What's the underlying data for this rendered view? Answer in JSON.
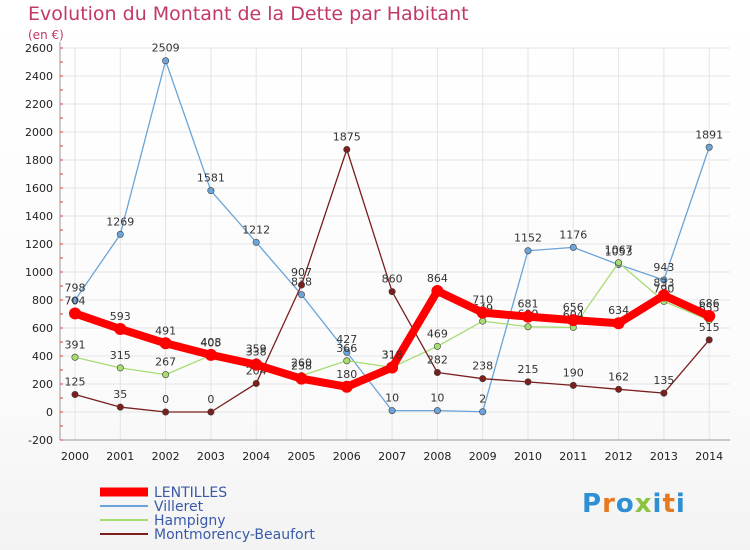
{
  "title": "Evolution du Montant de la Dette par Habitant",
  "subtitle": "(en €)",
  "logo": {
    "text": "Proxiti",
    "colors": [
      "#2f8fd3",
      "#e8791e",
      "#2f8fd3",
      "#8ac43f",
      "#2f8fd3",
      "#e8791e",
      "#2f8fd3"
    ]
  },
  "chart_data": {
    "type": "line",
    "title": "Evolution du Montant de la Dette par Habitant",
    "ylabel": "(en €)",
    "x": [
      "2000",
      "2001",
      "2002",
      "2003",
      "2004",
      "2005",
      "2006",
      "2007",
      "2008",
      "2009",
      "2010",
      "2011",
      "2012",
      "2013",
      "2014"
    ],
    "ylim": [
      -200,
      2600
    ],
    "yticks": [
      -200,
      0,
      200,
      400,
      600,
      800,
      1000,
      1200,
      1400,
      1600,
      1800,
      2000,
      2200,
      2400,
      2600
    ],
    "grid": true,
    "legend": "bottom-left",
    "series": [
      {
        "name": "LENTILLES",
        "color": "#ff0000",
        "width": 8,
        "values": [
          704,
          593,
          491,
          408,
          338,
          238,
          180,
          318,
          864,
          710,
          681,
          656,
          634,
          833,
          686
        ]
      },
      {
        "name": "Villeret",
        "color": "#6aa4d8",
        "width": 1.3,
        "values": [
          798,
          1269,
          2509,
          1581,
          1212,
          838,
          427,
          10,
          10,
          2,
          1152,
          1176,
          1053,
          943,
          1891
        ]
      },
      {
        "name": "Hampigny",
        "color": "#a6dc70",
        "width": 1.3,
        "values": [
          391,
          315,
          267,
          405,
          359,
          260,
          366,
          319,
          469,
          649,
          609,
          604,
          1067,
          790,
          655
        ]
      },
      {
        "name": "Montmorency-Beaufort",
        "color": "#7a1e1e",
        "width": 1.3,
        "values": [
          125,
          35,
          0,
          0,
          204,
          907,
          1875,
          860,
          282,
          238,
          215,
          190,
          162,
          135,
          515
        ]
      }
    ]
  }
}
